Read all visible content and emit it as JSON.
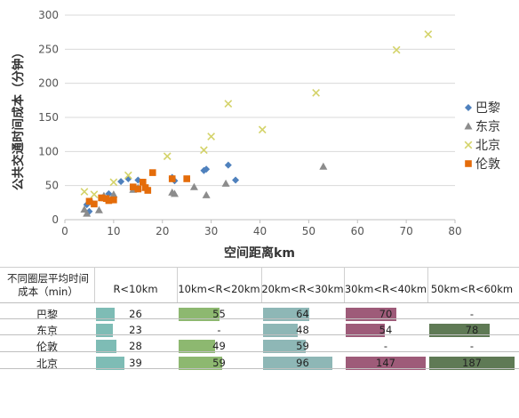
{
  "chart_data": [
    {
      "type": "scatter",
      "title": "",
      "xlabel": "空间距离km",
      "ylabel": "公共交通时间成本（分钟）",
      "xlim": [
        0,
        80
      ],
      "ylim": [
        0,
        300
      ],
      "xticks": [
        0,
        10,
        20,
        30,
        40,
        50,
        60,
        70,
        80
      ],
      "yticks": [
        0,
        50,
        100,
        150,
        200,
        250,
        300
      ],
      "grid": "horizontal",
      "legend_position": "right",
      "series": [
        {
          "name": "巴黎",
          "marker": "diamond",
          "color": "#4f81bd",
          "points": [
            [
              4.5,
              22
            ],
            [
              5,
              12
            ],
            [
              7.5,
              32
            ],
            [
              9,
              38
            ],
            [
              11.5,
              56
            ],
            [
              13,
              60
            ],
            [
              15,
              58
            ],
            [
              22,
              62
            ],
            [
              22.5,
              57
            ],
            [
              28.5,
              72
            ],
            [
              29,
              74
            ],
            [
              33.5,
              80
            ],
            [
              35,
              58
            ]
          ]
        },
        {
          "name": "东京",
          "marker": "triangle",
          "color": "#8c8c8c",
          "points": [
            [
              4,
              15
            ],
            [
              4.5,
              9
            ],
            [
              5.5,
              26
            ],
            [
              7,
              14
            ],
            [
              8,
              35
            ],
            [
              10,
              37
            ],
            [
              14,
              44
            ],
            [
              15,
              47
            ],
            [
              22,
              40
            ],
            [
              22.5,
              38
            ],
            [
              26.5,
              48
            ],
            [
              29,
              36
            ],
            [
              33,
              53
            ],
            [
              53,
              78
            ]
          ]
        },
        {
          "name": "北京",
          "marker": "x",
          "color": "#d4d36a",
          "points": [
            [
              4,
              41
            ],
            [
              6,
              37
            ],
            [
              10,
              55
            ],
            [
              13,
              65
            ],
            [
              21,
              93
            ],
            [
              28.5,
              102
            ],
            [
              30,
              122
            ],
            [
              33.5,
              170
            ],
            [
              40.5,
              132
            ],
            [
              51.5,
              186
            ],
            [
              68,
              249
            ],
            [
              74.5,
              272
            ]
          ]
        },
        {
          "name": "伦敦",
          "marker": "square",
          "color": "#e46c0a",
          "points": [
            [
              5,
              27
            ],
            [
              6,
              23
            ],
            [
              7.5,
              32
            ],
            [
              8.5,
              31
            ],
            [
              9,
              28
            ],
            [
              10,
              29
            ],
            [
              14,
              48
            ],
            [
              15,
              45
            ],
            [
              16,
              55
            ],
            [
              16.5,
              47
            ],
            [
              17,
              43
            ],
            [
              18,
              69
            ],
            [
              22,
              60
            ],
            [
              25,
              60
            ]
          ]
        }
      ]
    },
    {
      "type": "table",
      "corner_header": "不同圈层平均时间成本（min）",
      "columns": [
        "R<10km",
        "10km<R<20km",
        "20km<R<30km",
        "30km<R<40km",
        "50km<R<60km"
      ],
      "column_colors": [
        "#7ebcb5",
        "#8db870",
        "#8eb7b6",
        "#9e5b79",
        "#5f7a55"
      ],
      "rows": [
        {
          "label": "巴黎",
          "values": [
            26,
            55,
            64,
            70,
            null
          ],
          "display": [
            "26",
            "55",
            "64",
            "70",
            "-"
          ]
        },
        {
          "label": "东京",
          "values": [
            23,
            null,
            48,
            54,
            78
          ],
          "display": [
            "23",
            "-",
            "48",
            "54",
            "78"
          ]
        },
        {
          "label": "伦敦",
          "values": [
            28,
            49,
            59,
            null,
            null
          ],
          "display": [
            "28",
            "49",
            "59",
            "-",
            "-"
          ]
        },
        {
          "label": "北京",
          "values": [
            39,
            59,
            96,
            147,
            187
          ],
          "display": [
            "39",
            "59",
            "96",
            "147",
            "187"
          ]
        }
      ]
    }
  ]
}
